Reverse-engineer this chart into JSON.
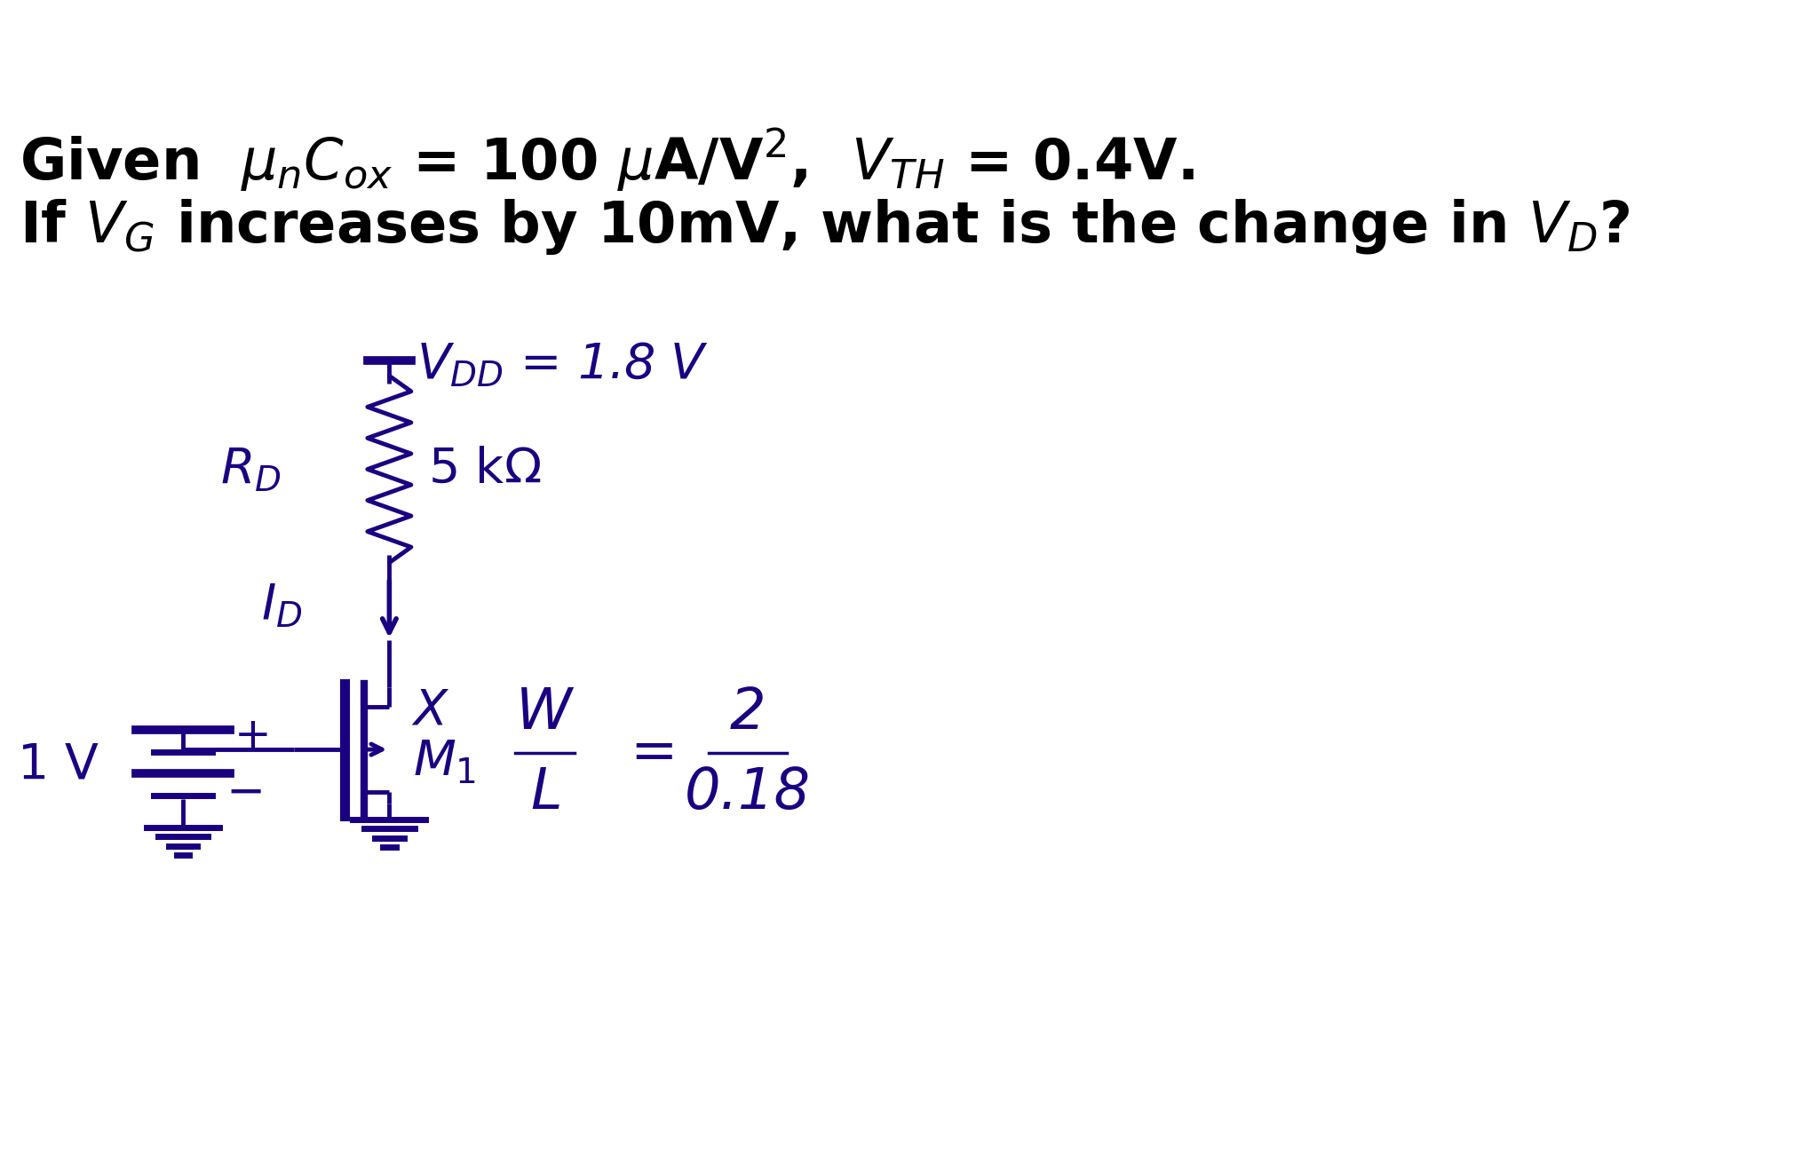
{
  "bg_color": "#ffffff",
  "cc": "#1a0080",
  "fig_w": 20.46,
  "fig_h": 13.2,
  "dpi": 100,
  "title1": "Given  $\\mu_n C_{ox}$ = 100 $\\mu$A/V$^2$,  $V_{TH}$ = 0.4V.",
  "title2": "If $V_G$ increases by 10mV, what is the change in $V_D$?",
  "vdd_txt": "$V_{DD}$ = 1.8 V",
  "rd_txt": "$R_D$",
  "rd_val": "5 k$\\Omega$",
  "id_txt": "$I_D$",
  "x_txt": "$X$",
  "m1_txt": "$M_1$",
  "wl_txt": "$W$",
  "l_txt": "$L$",
  "num_txt": "2",
  "den_txt": "0.18",
  "v1_txt": "1 V",
  "plus_txt": "+",
  "minus_txt": "−",
  "lw": 3.5,
  "lw_thick": 5.0
}
